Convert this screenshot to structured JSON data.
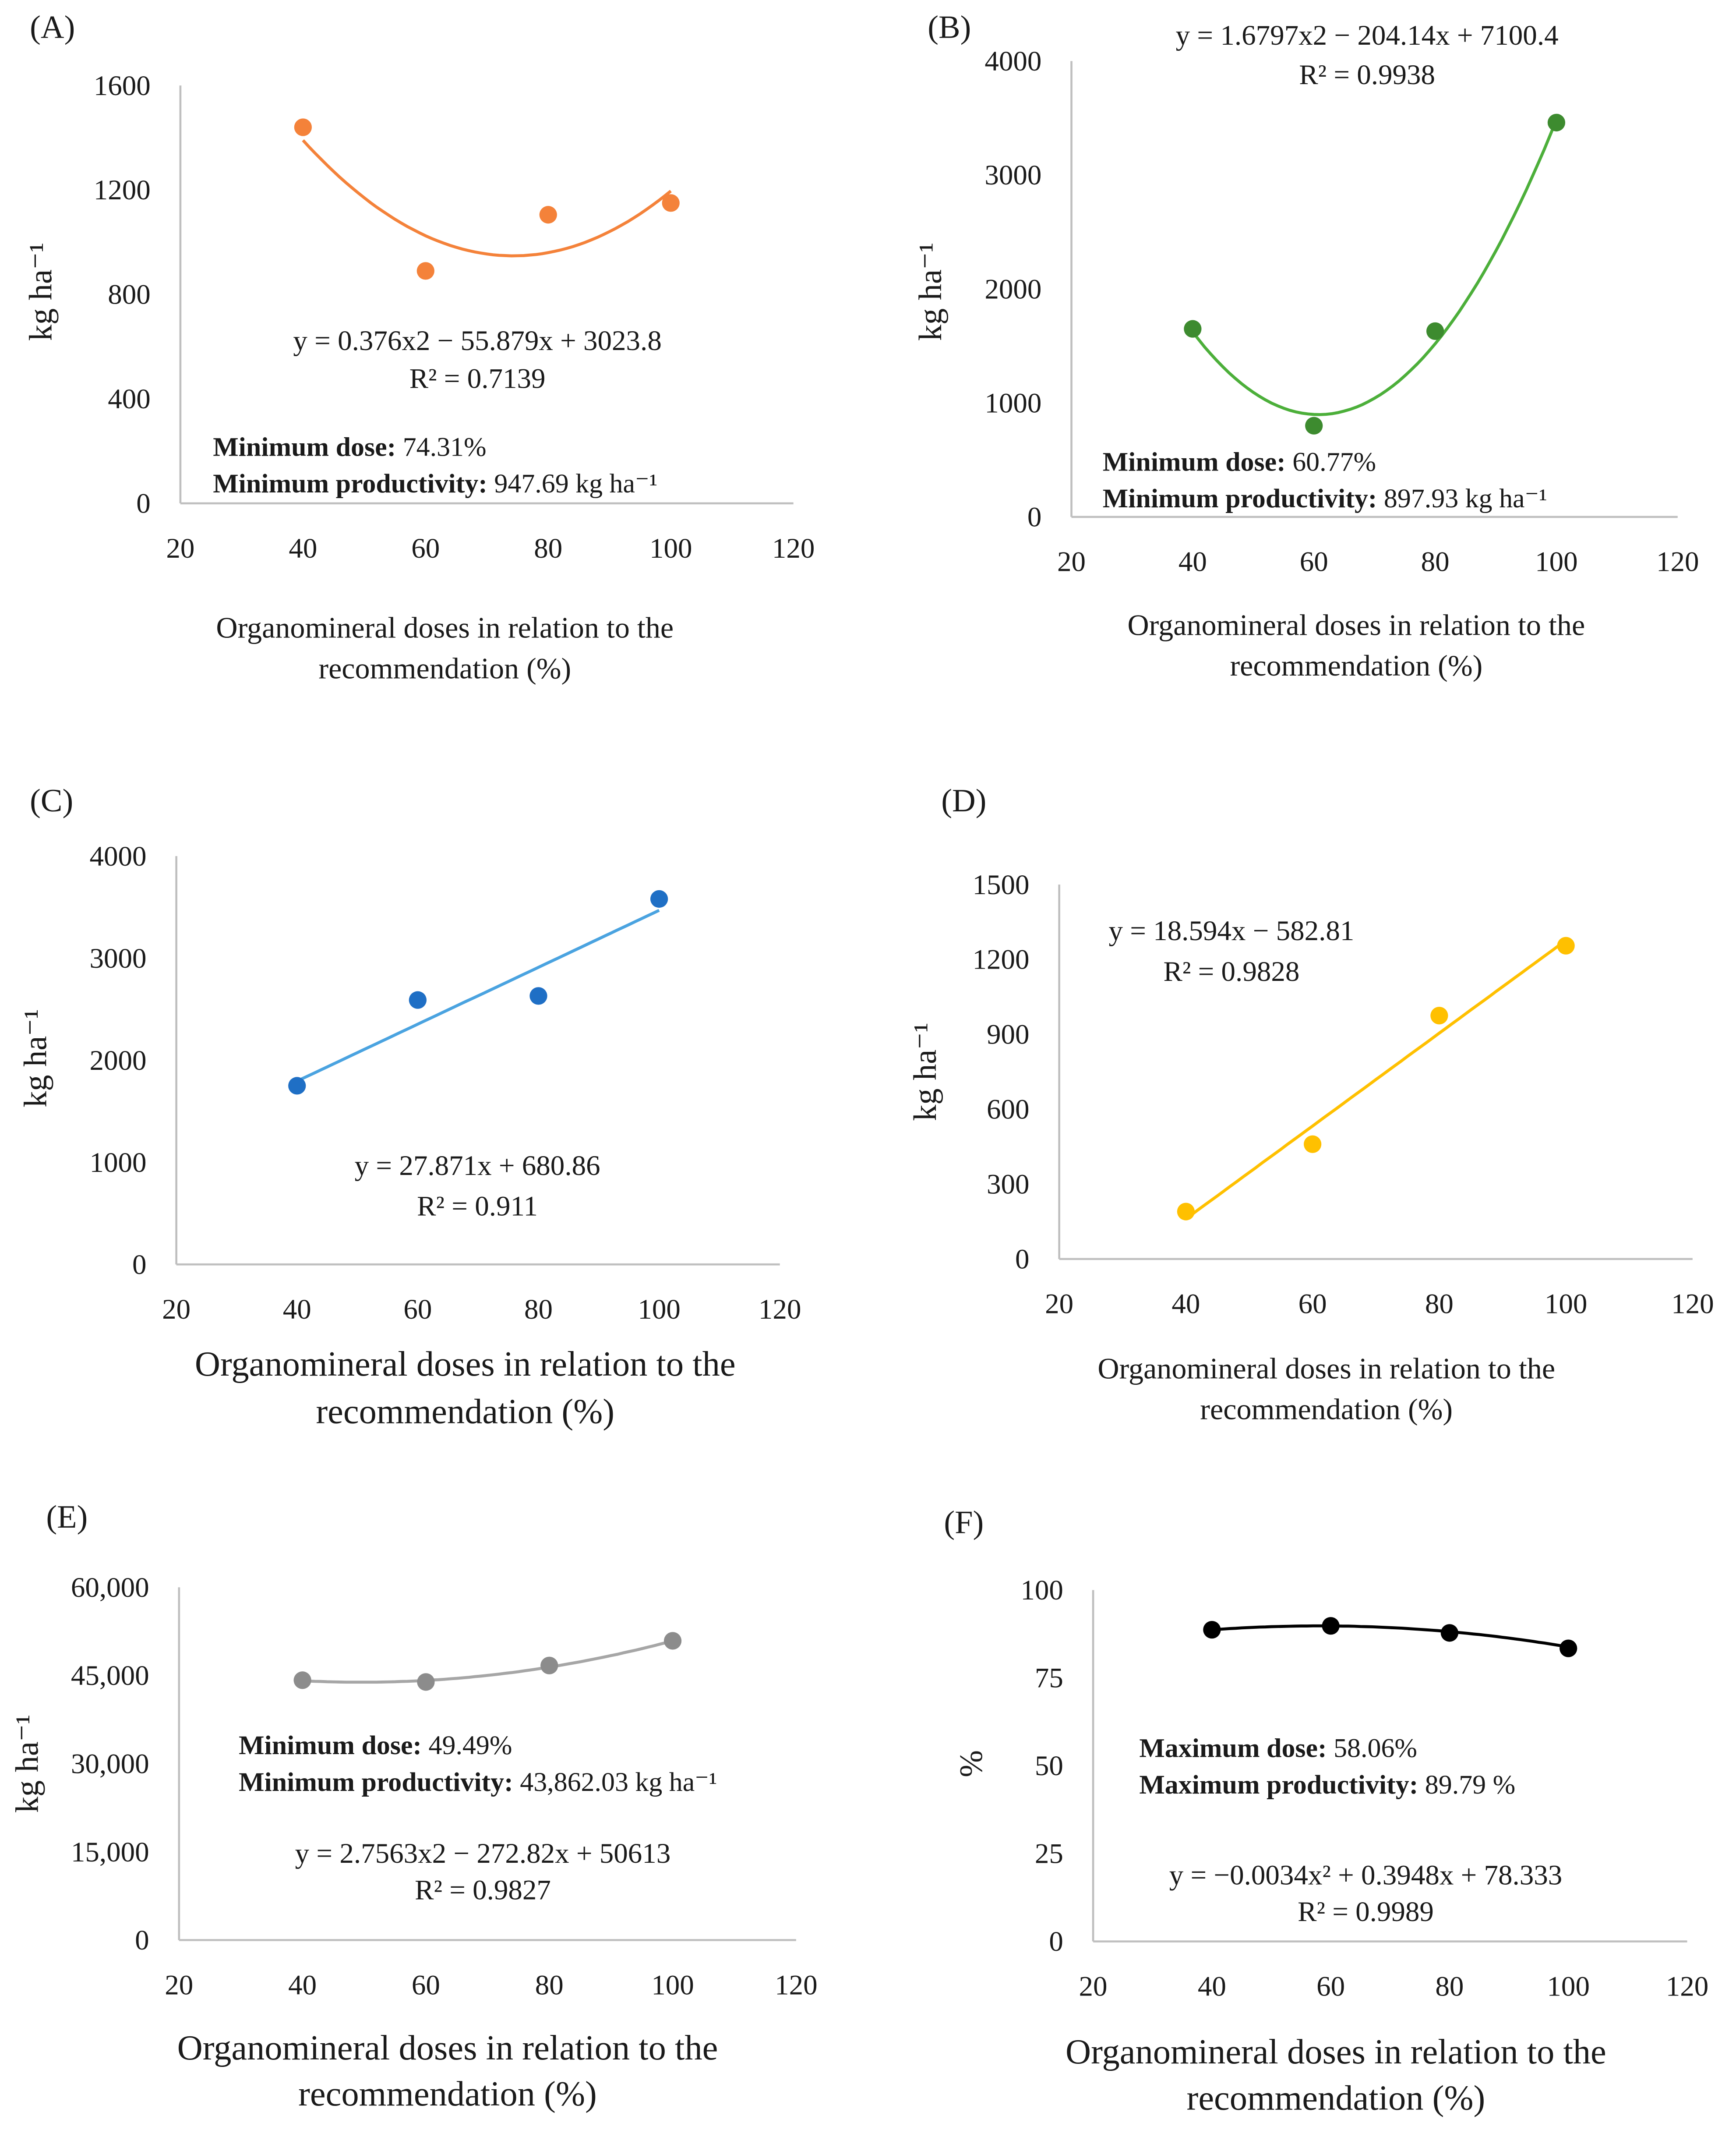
{
  "chart_data": [
    {
      "panel": "(A)",
      "type": "scatter",
      "ylabel": "kg ha⁻¹",
      "xlabel": [
        "Organomineral  doses in relation  to the",
        "recommendation  (%)"
      ],
      "xlim": [
        20,
        120
      ],
      "ylim": [
        0,
        1600
      ],
      "xticks": [
        "20",
        "40",
        "60",
        "80",
        "100",
        "120"
      ],
      "yticks": [
        "0",
        "400",
        "800",
        "1200",
        "1600"
      ],
      "ytick_values": [
        0,
        400,
        800,
        1200,
        1600
      ],
      "x": [
        40,
        60,
        80,
        100
      ],
      "y": [
        1440,
        890,
        1105,
        1150
      ],
      "trend": {
        "kind": "quadratic",
        "coef": [
          0.376,
          -55.879,
          3023.8
        ]
      },
      "equation": "y = 0.376x2 − 55.879x + 3023.8",
      "r2": "R² = 0.7139",
      "annotations": [
        {
          "label": "Minimum dose:",
          "value": " 74.31%"
        },
        {
          "label": "Minimum productivity:",
          "value": " 947.69 kg ha⁻¹"
        }
      ],
      "color": "#f4823a",
      "line_color": "#f4823a"
    },
    {
      "panel": "(B)",
      "type": "scatter",
      "ylabel": "kg ha⁻¹",
      "xlabel": [
        "Organomineral  doses in relation  to the",
        "recommendation  (%)"
      ],
      "xlim": [
        20,
        120
      ],
      "ylim": [
        0,
        4000
      ],
      "xticks": [
        "20",
        "40",
        "60",
        "80",
        "100",
        "120"
      ],
      "yticks": [
        "0",
        "1000",
        "2000",
        "3000",
        "4000"
      ],
      "ytick_values": [
        0,
        1000,
        2000,
        3000,
        4000
      ],
      "x": [
        40,
        60,
        80,
        100
      ],
      "y": [
        1650,
        800,
        1630,
        3460
      ],
      "trend": {
        "kind": "quadratic",
        "coef": [
          1.6797,
          -204.14,
          7100.4
        ]
      },
      "equation": "y = 1.6797x2 − 204.14x + 7100.4",
      "r2": "R² = 0.9938",
      "annotations": [
        {
          "label": "Minimum dose:",
          "value": " 60.77%"
        },
        {
          "label": "Minimum productivity:",
          "value": " 897.93 kg ha⁻¹"
        }
      ],
      "color": "#3d8b2f",
      "line_color": "#4caf3a"
    },
    {
      "panel": "(C)",
      "type": "scatter",
      "ylabel": "kg ha⁻¹",
      "xlabel": [
        "Organomineral doses in relation to the",
        "recommendation (%)"
      ],
      "xlim": [
        20,
        120
      ],
      "ylim": [
        0,
        4000
      ],
      "xticks": [
        "20",
        "40",
        "60",
        "80",
        "100",
        "120"
      ],
      "yticks": [
        "0",
        "1000",
        "2000",
        "3000",
        "4000"
      ],
      "ytick_values": [
        0,
        1000,
        2000,
        3000,
        4000
      ],
      "x": [
        40,
        60,
        80,
        100
      ],
      "y": [
        1750,
        2590,
        2630,
        3580
      ],
      "trend": {
        "kind": "linear",
        "coef": [
          0,
          27.871,
          680.86
        ]
      },
      "equation": "y = 27.871x  + 680.86",
      "r2": "R² = 0.911",
      "annotations": [],
      "color": "#1f6fc5",
      "line_color": "#4aa3e0"
    },
    {
      "panel": "(D)",
      "type": "scatter",
      "ylabel": "kg ha⁻¹",
      "xlabel": [
        "Organomineral  doses in relation  to the",
        "recommendation  (%)"
      ],
      "xlim": [
        20,
        120
      ],
      "ylim": [
        0,
        1500
      ],
      "xticks": [
        "20",
        "40",
        "60",
        "80",
        "100",
        "120"
      ],
      "yticks": [
        "0",
        "300",
        "600",
        "900",
        "1200",
        "1500"
      ],
      "ytick_values": [
        0,
        300,
        600,
        900,
        1200,
        1500
      ],
      "x": [
        40,
        60,
        80,
        100
      ],
      "y": [
        190,
        460,
        975,
        1255
      ],
      "trend": {
        "kind": "linear",
        "coef": [
          0,
          18.594,
          -582.81
        ]
      },
      "equation": "y = 18.594x  − 582.81",
      "r2": "R² = 0.9828",
      "annotations": [],
      "color": "#ffc000",
      "line_color": "#ffc000"
    },
    {
      "panel": "(E)",
      "type": "scatter",
      "ylabel": "kg ha⁻¹",
      "xlabel": [
        "Organomineral doses in relation to the",
        "recommendation (%)"
      ],
      "xlim": [
        20,
        120
      ],
      "ylim": [
        0,
        60000
      ],
      "xticks": [
        "20",
        "40",
        "60",
        "80",
        "100",
        "120"
      ],
      "yticks": [
        "0",
        "15,000",
        "30,000",
        "45,000",
        "60,000"
      ],
      "ytick_values": [
        0,
        15000,
        30000,
        45000,
        60000
      ],
      "x": [
        40,
        60,
        80,
        100
      ],
      "y": [
        44200,
        43900,
        46700,
        50900
      ],
      "trend": {
        "kind": "quadratic",
        "coef": [
          2.7563,
          -272.82,
          50613
        ]
      },
      "equation": "y = 2.7563x2 − 272.82x + 50613",
      "r2": "R² = 0.9827",
      "annotations": [
        {
          "label": "Minimum dose:",
          "value": " 49.49%"
        },
        {
          "label": "Minimum productivity:",
          "value": " 43,862.03 kg ha⁻¹"
        }
      ],
      "color": "#8c8c8c",
      "line_color": "#a6a6a6"
    },
    {
      "panel": "(F)",
      "type": "scatter",
      "ylabel": "%",
      "xlabel": [
        "Organomineral doses in relation to the",
        "recommendation (%)"
      ],
      "xlim": [
        20,
        120
      ],
      "ylim": [
        0,
        100
      ],
      "xticks": [
        "20",
        "40",
        "60",
        "80",
        "100",
        "120"
      ],
      "yticks": [
        "0",
        "25",
        "50",
        "75",
        "100"
      ],
      "ytick_values": [
        0,
        25,
        50,
        75,
        100
      ],
      "x": [
        40,
        60,
        80,
        100
      ],
      "y": [
        88.7,
        89.8,
        87.8,
        83.4
      ],
      "trend": {
        "kind": "quadratic",
        "coef": [
          -0.0034,
          0.3948,
          78.333
        ]
      },
      "equation": "y = −0.0034x² + 0.3948x + 78.333",
      "r2": "R² = 0.9989",
      "annotations": [
        {
          "label": "Maximum dose:",
          "value": " 58.06%"
        },
        {
          "label": "Maximum productivity:",
          "value": "  89.79 %"
        }
      ],
      "color": "#000000",
      "line_color": "#000000"
    }
  ]
}
